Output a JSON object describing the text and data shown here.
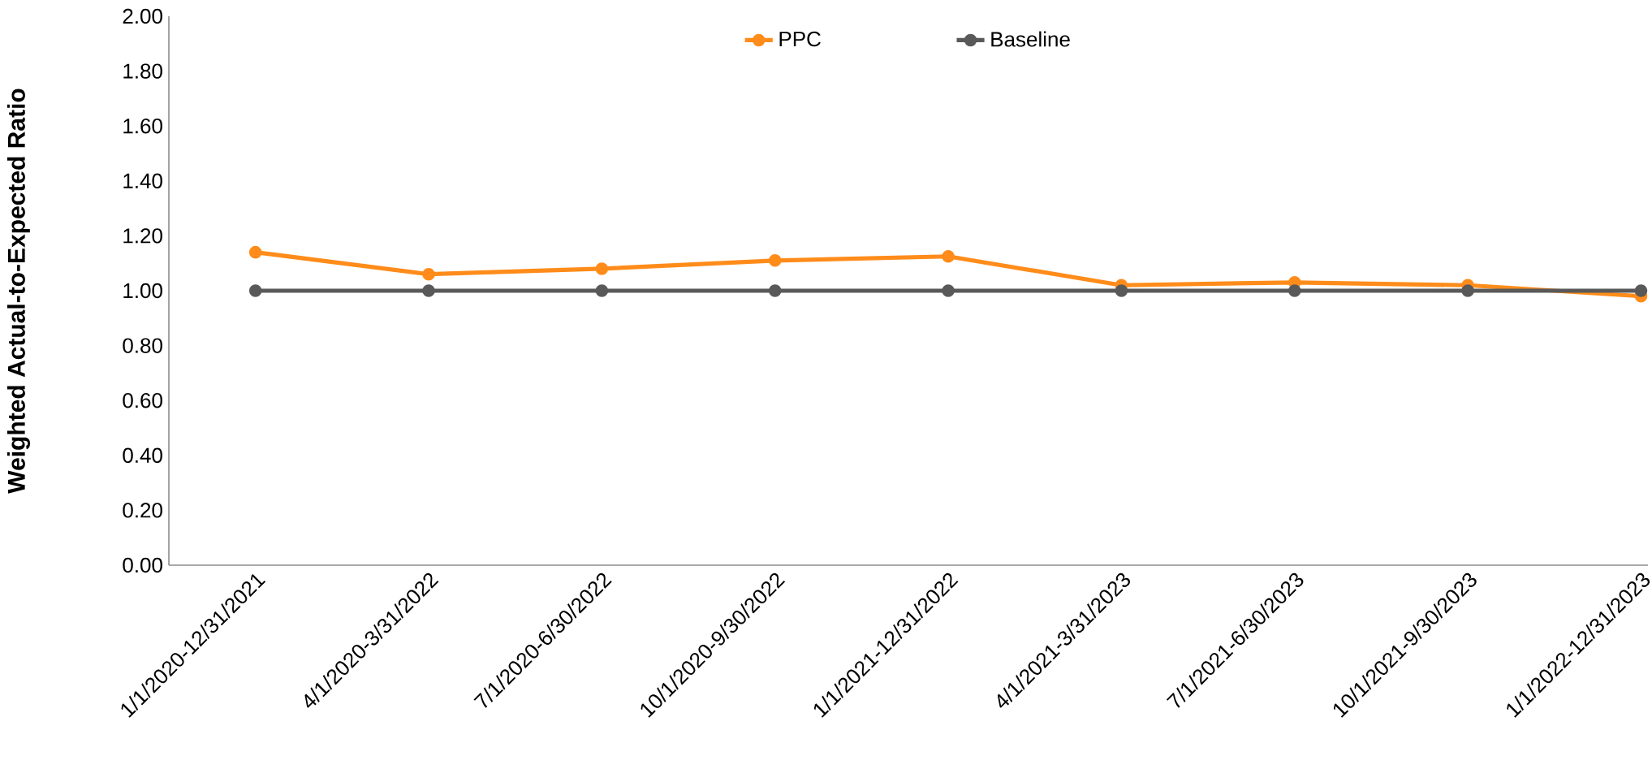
{
  "chart_data": {
    "type": "line",
    "ylabel": "Weighted Actual-to-Expected Ratio",
    "categories": [
      "1/1/2020-12/31/2021",
      "4/1/2020-3/31/2022",
      "7/1/2020-6/30/2022",
      "10/1/2020-9/30/2022",
      "1/1/2021-12/31/2022",
      "4/1/2021-3/31/2023",
      "7/1/2021-6/30/2023",
      "10/1/2021-9/30/2023",
      "1/1/2022-12/31/2023"
    ],
    "series": [
      {
        "name": "PPC",
        "color": "#ff8c1a",
        "values": [
          1.14,
          1.06,
          1.08,
          1.11,
          1.125,
          1.02,
          1.03,
          1.02,
          0.98
        ]
      },
      {
        "name": "Baseline",
        "color": "#595959",
        "values": [
          1.0,
          1.0,
          1.0,
          1.0,
          1.0,
          1.0,
          1.0,
          1.0,
          1.0
        ]
      }
    ],
    "ylim": [
      0,
      2
    ],
    "yticks": [
      {
        "value": 0,
        "label": "0.00"
      },
      {
        "value": 0.2,
        "label": "0.20"
      },
      {
        "value": 0.4,
        "label": "0.40"
      },
      {
        "value": 0.6,
        "label": "0.60"
      },
      {
        "value": 0.8,
        "label": "0.80"
      },
      {
        "value": 1.0,
        "label": "1.00"
      },
      {
        "value": 1.2,
        "label": "1.20"
      },
      {
        "value": 1.4,
        "label": "1.40"
      },
      {
        "value": 1.6,
        "label": "1.60"
      },
      {
        "value": 1.8,
        "label": "1.80"
      },
      {
        "value": 2.0,
        "label": "2.00"
      }
    ],
    "grid": false,
    "legend": "top",
    "marker": "circle",
    "line_style": "solid"
  }
}
